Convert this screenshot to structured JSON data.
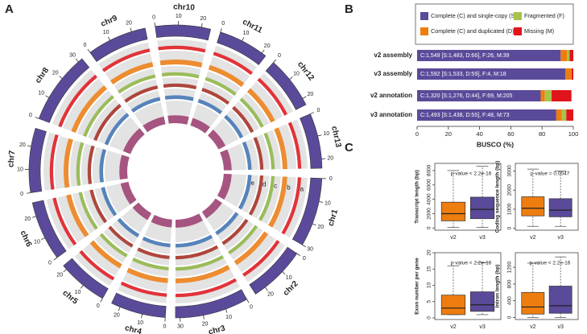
{
  "chart_data": [
    {
      "type": "circos",
      "panel": "A",
      "chromosomes": [
        {
          "name": "chr10",
          "length": 24,
          "ticks": [
            0,
            10,
            20
          ]
        },
        {
          "name": "chr11",
          "length": 22,
          "ticks": [
            0,
            10,
            20
          ]
        },
        {
          "name": "chr12",
          "length": 23,
          "ticks": [
            0,
            10,
            20
          ]
        },
        {
          "name": "chr13",
          "length": 24,
          "ticks": [
            0,
            10,
            20
          ]
        },
        {
          "name": "chr1",
          "length": 30,
          "ticks": [
            0,
            10,
            20,
            30
          ]
        },
        {
          "name": "chr2",
          "length": 25,
          "ticks": [
            0,
            10,
            20
          ]
        },
        {
          "name": "chr3",
          "length": 32,
          "ticks": [
            0,
            10,
            20,
            30
          ]
        },
        {
          "name": "chr4",
          "length": 24,
          "ticks": [
            0,
            10,
            20
          ]
        },
        {
          "name": "chr5",
          "length": 22,
          "ticks": [
            0,
            10,
            20
          ]
        },
        {
          "name": "chr6",
          "length": 26,
          "ticks": [
            0,
            10,
            20
          ]
        },
        {
          "name": "chr7",
          "length": 28,
          "ticks": [
            0,
            10,
            20
          ]
        },
        {
          "name": "chr8",
          "length": 32,
          "ticks": [
            0,
            10,
            20,
            30
          ]
        },
        {
          "name": "chr9",
          "length": 26,
          "ticks": [
            0,
            10,
            20
          ]
        }
      ],
      "ideogram_color": "#5b4a9a",
      "tracks": [
        {
          "label": "a",
          "color": "#e0141b"
        },
        {
          "label": "b",
          "color": "#ee7d10"
        },
        {
          "label": "c",
          "color": "#8db542"
        },
        {
          "label": "d",
          "color": "#a52a1e"
        },
        {
          "label": "e",
          "color": "#3d72b4"
        },
        {
          "label": null,
          "color": "#9b3b6e"
        }
      ]
    },
    {
      "type": "bar",
      "orientation": "horizontal",
      "stacked": true,
      "panel": "B",
      "categories": [
        "v2 assembly",
        "v3 assembly",
        "v2 annotation",
        "v3 annotation"
      ],
      "series": [
        {
          "name": "Complete (C) and single-copy (S)",
          "color": "#5b4a9a",
          "values": [
            91.9,
            95.0,
            79.1,
            89.1
          ]
        },
        {
          "name": "Complete (C) and duplicated (D)",
          "color": "#ee7d10",
          "values": [
            4.1,
            3.7,
            2.7,
            3.4
          ]
        },
        {
          "name": "Fragmented (F)",
          "color": "#a5c34a",
          "values": [
            1.6,
            0.2,
            4.3,
            3.0
          ]
        },
        {
          "name": "Missing (M)",
          "color": "#e0141b",
          "values": [
            2.4,
            1.1,
            12.7,
            4.5
          ]
        }
      ],
      "bar_labels": [
        "C:1,549 [S:1,483, D:66], F:26, M:39",
        "C:1,592 [S:1,533, D:59], F:4, M:18",
        "C:1,320 [S:1,276, D:44], F:69, M:205",
        "C:1,493 [S:1,438, D:55], F:48, M:73"
      ],
      "xlabel": "BUSCO (%)",
      "xlim": [
        0,
        100
      ],
      "xticks": [
        0,
        20,
        40,
        60,
        80,
        100
      ]
    },
    {
      "type": "box",
      "panel": "C",
      "ylabel": "Transcript length (bp)",
      "annotation": "p-value < 2.2e-16",
      "categories": [
        "v2",
        "v3"
      ],
      "ylim": [
        -300,
        9000
      ],
      "yticks": [
        0,
        2000,
        4000,
        6000,
        8000
      ],
      "boxes": [
        {
          "color": "#ee7d10",
          "stats": [
            100,
            1000,
            2000,
            3600,
            8000
          ]
        },
        {
          "color": "#5b4a9a",
          "stats": [
            100,
            1300,
            2600,
            4300,
            8600
          ]
        }
      ]
    },
    {
      "type": "box",
      "ylabel": "Coding sequence length (bp)",
      "annotation": "p-value = 0.0047",
      "categories": [
        "v2",
        "v3"
      ],
      "ylim": [
        -100,
        3400
      ],
      "yticks": [
        0,
        1000,
        2000,
        3000
      ],
      "boxes": [
        {
          "color": "#ee7d10",
          "stats": [
            100,
            650,
            1050,
            1650,
            3100
          ]
        },
        {
          "color": "#5b4a9a",
          "stats": [
            100,
            600,
            950,
            1550,
            3000
          ]
        }
      ]
    },
    {
      "type": "box",
      "ylabel": "Exon number per gene",
      "annotation": "p-value < 2.2e-16",
      "categories": [
        "v2",
        "v3"
      ],
      "ylim": [
        -0.5,
        20
      ],
      "yticks": [
        0,
        5,
        10,
        15,
        20
      ],
      "boxes": [
        {
          "color": "#ee7d10",
          "stats": [
            1,
            1,
            3,
            7,
            16
          ]
        },
        {
          "color": "#5b4a9a",
          "stats": [
            1,
            2,
            4,
            8,
            17
          ]
        }
      ]
    },
    {
      "type": "box",
      "ylabel": "Intron length (bp)",
      "annotation": "p-value < 2.2e-16",
      "categories": [
        "v2",
        "v3"
      ],
      "ylim": [
        -50,
        1550
      ],
      "yticks": [
        0,
        400,
        800,
        1200
      ],
      "boxes": [
        {
          "color": "#ee7d10",
          "stats": [
            0,
            80,
            250,
            600,
            1300
          ]
        },
        {
          "color": "#5b4a9a",
          "stats": [
            0,
            100,
            280,
            750,
            1450
          ]
        }
      ]
    }
  ]
}
